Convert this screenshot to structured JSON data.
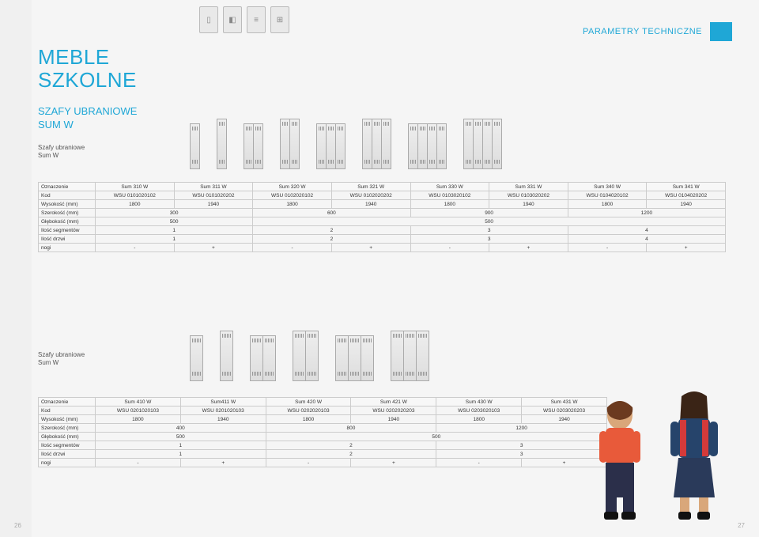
{
  "brand_title_line1": "MEBLE",
  "brand_title_line2": "SZKOLNE",
  "category_line1": "SZAFY UBRANIOWE",
  "category_line2": "SUM W",
  "tech_params_label": "PARAMETRY TECHNICZNE",
  "section1_label_line1": "Szafy ubraniowe",
  "section1_label_line2": "Sum W",
  "section2_label_line1": "Szafy ubraniowe",
  "section2_label_line2": "Sum W",
  "page_left": "26",
  "page_right": "27",
  "rows_labels": {
    "ozn": "Oznaczenie",
    "kod": "Kod",
    "wys": "Wysokość (mm)",
    "szer": "Szerokość (mm)",
    "gleb": "Głębokość (mm)",
    "seg": "Ilość segmentów",
    "drzwi": "Ilość drzwi",
    "nogi": "nogi"
  },
  "table1": {
    "cols": [
      {
        "ozn": "Sum 310 W",
        "kod": "WSU 0101020102",
        "wys": "1800"
      },
      {
        "ozn": "Sum 311 W",
        "kod": "WSU 0101020202",
        "wys": "1940"
      },
      {
        "ozn": "Sum 320 W",
        "kod": "WSU 0102020102",
        "wys": "1800"
      },
      {
        "ozn": "Sum 321 W",
        "kod": "WSU 0102020202",
        "wys": "1940"
      },
      {
        "ozn": "Sum 330 W",
        "kod": "WSU 0103020102",
        "wys": "1800"
      },
      {
        "ozn": "Sum 331 W",
        "kod": "WSU 0103020202",
        "wys": "1940"
      },
      {
        "ozn": "Sum 340 W",
        "kod": "WSU 0104020102",
        "wys": "1800"
      },
      {
        "ozn": "Sum 341 W",
        "kod": "WSU 0104020202",
        "wys": "1940"
      }
    ],
    "szer": [
      "300",
      "600",
      "900",
      "1200"
    ],
    "gleb": [
      "500",
      "500"
    ],
    "seg": [
      "1",
      "2",
      "3",
      "4"
    ],
    "drzwi": [
      "1",
      "2",
      "3",
      "4"
    ],
    "nogi": [
      "-",
      "+",
      "-",
      "+",
      "-",
      "+",
      "-",
      "+"
    ]
  },
  "table2": {
    "cols": [
      {
        "ozn": "Sum 410 W",
        "kod": "WSU 0201020103",
        "wys": "1800"
      },
      {
        "ozn": "Sum411 W",
        "kod": "WSU 0201020103",
        "wys": "1940"
      },
      {
        "ozn": "Sum 420 W",
        "kod": "WSU 0202020103",
        "wys": "1800"
      },
      {
        "ozn": "Sum 421 W",
        "kod": "WSU 0202020203",
        "wys": "1940"
      },
      {
        "ozn": "Sum 430 W",
        "kod": "WSU 0203020103",
        "wys": "1800"
      },
      {
        "ozn": "Sum 431 W",
        "kod": "WSU 0203020203",
        "wys": "1940"
      }
    ],
    "szer": [
      "400",
      "800",
      "1200"
    ],
    "gleb": [
      "500",
      "500"
    ],
    "seg": [
      "1",
      "2",
      "3"
    ],
    "drzwi": [
      "1",
      "2",
      "3"
    ],
    "nogi": [
      "-",
      "+",
      "-",
      "+",
      "-",
      "+"
    ]
  },
  "lockers1": [
    {
      "cols": 1,
      "legs": false
    },
    {
      "cols": 1,
      "legs": true
    },
    {
      "cols": 2,
      "legs": false
    },
    {
      "cols": 2,
      "legs": true
    },
    {
      "cols": 3,
      "legs": false
    },
    {
      "cols": 3,
      "legs": true
    },
    {
      "cols": 4,
      "legs": false
    },
    {
      "cols": 4,
      "legs": true
    }
  ],
  "lockers2": [
    {
      "cols": 1,
      "legs": false
    },
    {
      "cols": 1,
      "legs": true
    },
    {
      "cols": 2,
      "legs": false
    },
    {
      "cols": 2,
      "legs": true
    },
    {
      "cols": 3,
      "legs": false
    },
    {
      "cols": 3,
      "legs": true
    }
  ],
  "colors": {
    "accent": "#1fa7d6",
    "border": "#cccccc",
    "bg": "#f5f5f5"
  }
}
